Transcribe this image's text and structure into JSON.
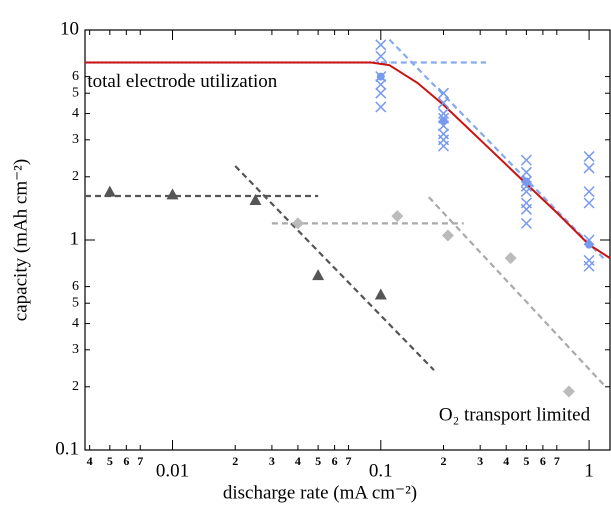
{
  "chart_data": {
    "type": "scatter",
    "log_x": true,
    "log_y": true,
    "xlabel": "discharge rate (mA cm⁻²)",
    "ylabel": "capacity (mAh cm⁻²)",
    "xlim": [
      0.0038,
      1.26
    ],
    "ylim": [
      0.1,
      10
    ],
    "xticks": [
      {
        "value": 0.004,
        "label": "4"
      },
      {
        "value": 0.005,
        "label": "5"
      },
      {
        "value": 0.006,
        "label": "6"
      },
      {
        "value": 0.007,
        "label": "7"
      },
      0.01,
      {
        "value": 0.02,
        "label": "2"
      },
      {
        "value": 0.03,
        "label": "3"
      },
      {
        "value": 0.04,
        "label": "4"
      },
      {
        "value": 0.05,
        "label": "5"
      },
      {
        "value": 0.06,
        "label": "6"
      },
      {
        "value": 0.07,
        "label": "7"
      },
      0.1,
      {
        "value": 0.2,
        "label": "2"
      },
      {
        "value": 0.3,
        "label": "3"
      },
      {
        "value": 0.4,
        "label": "4"
      },
      {
        "value": 0.5,
        "label": "5"
      },
      {
        "value": 0.6,
        "label": "6"
      },
      {
        "value": 0.7,
        "label": "7"
      },
      1
    ],
    "yticks": [
      0.1,
      {
        "value": 0.2,
        "label": "2"
      },
      {
        "value": 0.3,
        "label": "3"
      },
      {
        "value": 0.4,
        "label": "4"
      },
      {
        "value": 0.5,
        "label": "5"
      },
      {
        "value": 0.6,
        "label": "6"
      },
      1,
      {
        "value": 2,
        "label": "2"
      },
      {
        "value": 3,
        "label": "3"
      },
      {
        "value": 4,
        "label": "4"
      },
      {
        "value": 5,
        "label": "5"
      },
      {
        "value": 6,
        "label": "6"
      },
      10
    ],
    "annotations": [
      {
        "text": "total electrode utilization",
        "x": 0.0039,
        "y": 5.6
      },
      {
        "text": "O₂ transport limited",
        "x": 0.19,
        "y": 0.145
      }
    ],
    "series": [
      {
        "marker": "line",
        "style": "dotted",
        "color": "#6699ee",
        "x": [
          0.0038,
          0.11
        ],
        "values": [
          7,
          7
        ]
      },
      {
        "marker": "line",
        "style": "dashed",
        "color": "#555555",
        "x": [
          0.0038,
          0.05
        ],
        "values": [
          1.62,
          1.62
        ]
      },
      {
        "marker": "line",
        "style": "dashed",
        "color": "#555555",
        "x": [
          0.02,
          0.18
        ],
        "values": [
          2.25,
          0.24
        ]
      },
      {
        "marker": "line",
        "style": "dashed",
        "color": "#aaaaaa",
        "x": [
          0.03,
          0.25
        ],
        "values": [
          1.2,
          1.2
        ]
      },
      {
        "marker": "line",
        "style": "dashed",
        "color": "#aaaaaa",
        "x": [
          0.17,
          1.2
        ],
        "values": [
          1.6,
          0.2
        ]
      },
      {
        "marker": "line",
        "style": "dashed",
        "color": "#88aaee",
        "x": [
          0.1,
          0.32
        ],
        "values": [
          7,
          7
        ]
      },
      {
        "marker": "line",
        "style": "dashed",
        "color": "#88aaee",
        "x": [
          0.11,
          1.2
        ],
        "values": [
          9,
          0.8
        ]
      },
      {
        "marker": "line",
        "style": "solid",
        "color": "#cc1111",
        "x": [
          0.0038,
          0.05,
          0.09,
          0.11,
          0.15,
          0.2,
          0.3,
          0.5,
          0.7,
          1,
          1.26
        ],
        "values": [
          7,
          7,
          7,
          6.8,
          5.6,
          4.4,
          3.0,
          1.85,
          1.35,
          0.95,
          0.82
        ]
      },
      {
        "marker": "triangle",
        "color": "#555555",
        "x": [
          0.005,
          0.01,
          0.025,
          0.05,
          0.1
        ],
        "values": [
          1.7,
          1.65,
          1.55,
          0.68,
          0.55
        ]
      },
      {
        "marker": "diamond",
        "color": "#bbbbbb",
        "x": [
          0.04,
          0.12,
          0.21,
          0.42,
          0.8
        ],
        "values": [
          1.2,
          1.3,
          1.05,
          0.82,
          0.19
        ]
      },
      {
        "marker": "cross",
        "color": "#7799ee",
        "x": [
          0.1,
          0.1,
          0.1,
          0.1,
          0.1,
          0.1,
          0.2,
          0.2,
          0.2,
          0.2,
          0.2,
          0.2,
          0.2,
          0.2,
          0.5,
          0.5,
          0.5,
          0.5,
          0.5,
          0.5,
          0.5,
          0.5,
          1,
          1,
          1,
          1,
          1,
          1,
          1
        ],
        "values": [
          8.5,
          7.5,
          6,
          5.5,
          5,
          4.3,
          5,
          4.5,
          4,
          3.8,
          3.5,
          3.2,
          3,
          2.8,
          2.4,
          2.1,
          1.9,
          1.8,
          1.7,
          1.5,
          1.4,
          1.2,
          2.5,
          2.2,
          1.7,
          1.5,
          1.0,
          0.8,
          0.75
        ]
      },
      {
        "marker": "circle",
        "color": "#7799ee",
        "x": [
          0.1,
          0.2,
          0.5,
          1
        ],
        "values": [
          6.0,
          3.7,
          1.9,
          0.95
        ]
      }
    ]
  }
}
